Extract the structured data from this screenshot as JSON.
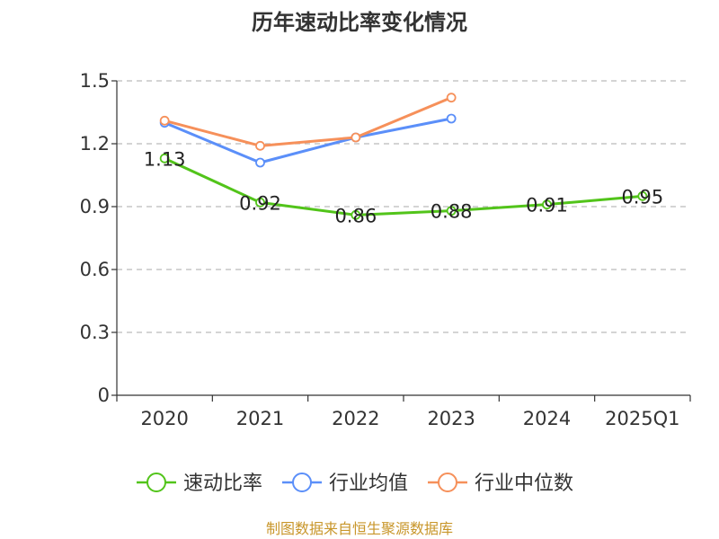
{
  "chart_data": {
    "type": "line",
    "title": "历年速动比率变化情况",
    "categories": [
      "2020",
      "2021",
      "2022",
      "2023",
      "2024",
      "2025Q1"
    ],
    "ylim": [
      0,
      1.5
    ],
    "yticks": [
      0,
      0.3,
      0.6,
      0.9,
      1.2,
      1.5
    ],
    "ytick_labels": [
      "0",
      "0.3",
      "0.6",
      "0.9",
      "1.2",
      "1.5"
    ],
    "grid": true,
    "legend_position": "bottom",
    "series": [
      {
        "name": "速动比率",
        "color": "#52c41a",
        "values": [
          1.13,
          0.92,
          0.86,
          0.88,
          0.91,
          0.95
        ],
        "labels": [
          "1.13",
          "0.92",
          "0.86",
          "0.88",
          "0.91",
          "0.95"
        ],
        "show_labels": true
      },
      {
        "name": "行业均值",
        "color": "#5b8ff9",
        "values": [
          1.3,
          1.11,
          1.23,
          1.32,
          null,
          null
        ],
        "show_labels": false
      },
      {
        "name": "行业中位数",
        "color": "#f6905a",
        "values": [
          1.31,
          1.19,
          1.23,
          1.42,
          null,
          null
        ],
        "show_labels": false
      }
    ],
    "source": "制图数据来自恒生聚源数据库",
    "source_color": "#c8962a"
  }
}
